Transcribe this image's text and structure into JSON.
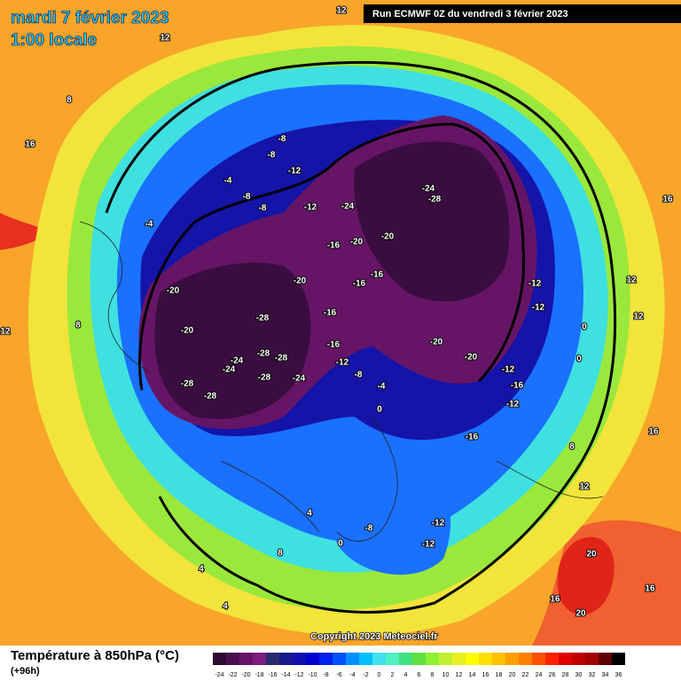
{
  "header": {
    "date": "mardi 7 février 2023",
    "time": "1:00 locale",
    "run": "Run ECMWF 0Z du vendredi 3 février 2023"
  },
  "footer": {
    "title": "Température à 850hPa (°C)",
    "lead": "(+96h)",
    "copyright": "Copyright 2023 Meteociel.fr"
  },
  "legend": {
    "ticks": [
      -24,
      -22,
      -20,
      -18,
      -16,
      -14,
      -12,
      -10,
      -8,
      -6,
      -4,
      -2,
      0,
      2,
      4,
      6,
      8,
      10,
      12,
      14,
      16,
      18,
      20,
      22,
      24,
      26,
      28,
      30,
      32,
      34,
      36
    ],
    "colors": [
      "#2e0a35",
      "#4a0f4f",
      "#661566",
      "#7d1c7d",
      "#2a2a6e",
      "#1a1a8c",
      "#1010b0",
      "#0000d0",
      "#0020f0",
      "#0050ff",
      "#0090ff",
      "#00c0ff",
      "#40e0f0",
      "#50f0c0",
      "#40e080",
      "#60e040",
      "#90f030",
      "#c0f030",
      "#e8f020",
      "#ffff00",
      "#ffe000",
      "#ffc000",
      "#ffa000",
      "#ff8000",
      "#ff5000",
      "#ff2000",
      "#e00000",
      "#c00000",
      "#a00000",
      "#600000",
      "#000000"
    ]
  },
  "map_labels": [
    12,
    12,
    8,
    16,
    -8,
    -8,
    -12,
    -4,
    -8,
    -8,
    -12,
    -24,
    -24,
    -28,
    -4,
    -16,
    -20,
    -20,
    16,
    -20,
    -20,
    -16,
    -16,
    -12,
    12,
    -12,
    12,
    -16,
    -28,
    8,
    -20,
    0,
    12,
    -16,
    -20,
    -28,
    -28,
    -24,
    -12,
    -24,
    -20,
    0,
    -12,
    -8,
    -28,
    -28,
    -24,
    -4,
    -16,
    -28,
    -12,
    0,
    -16,
    16,
    8,
    12,
    4,
    -12,
    -8,
    -12,
    0,
    8,
    4,
    20,
    16,
    16,
    20,
    4
  ]
}
